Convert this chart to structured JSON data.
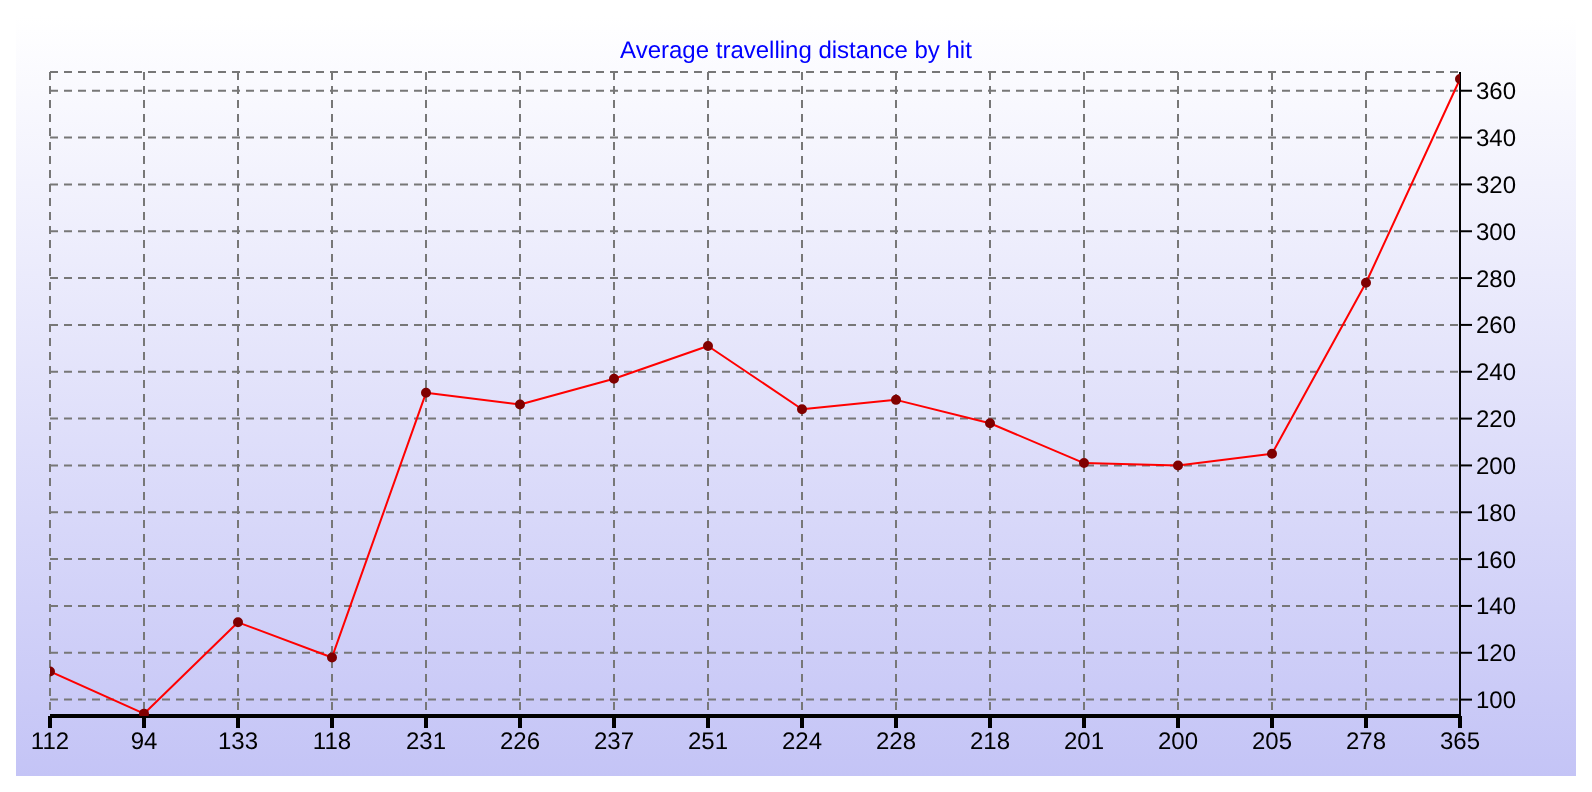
{
  "chart_data": {
    "type": "line",
    "title": "Average travelling distance by hit",
    "categories": [
      "112",
      "94",
      "133",
      "118",
      "231",
      "226",
      "237",
      "251",
      "224",
      "228",
      "218",
      "201",
      "200",
      "205",
      "278",
      "365"
    ],
    "series": [
      {
        "color": "#ff0000",
        "values": [
          112,
          94,
          133,
          118,
          231,
          226,
          237,
          251,
          224,
          228,
          218,
          201,
          200,
          205,
          278,
          365
        ]
      }
    ],
    "ylim": [
      93,
      368
    ],
    "yticks": [
      100,
      120,
      140,
      160,
      180,
      200,
      220,
      240,
      260,
      280,
      300,
      320,
      340,
      360
    ],
    "grid": true,
    "marker": "circle",
    "line_style": "solid",
    "legend": false
  }
}
